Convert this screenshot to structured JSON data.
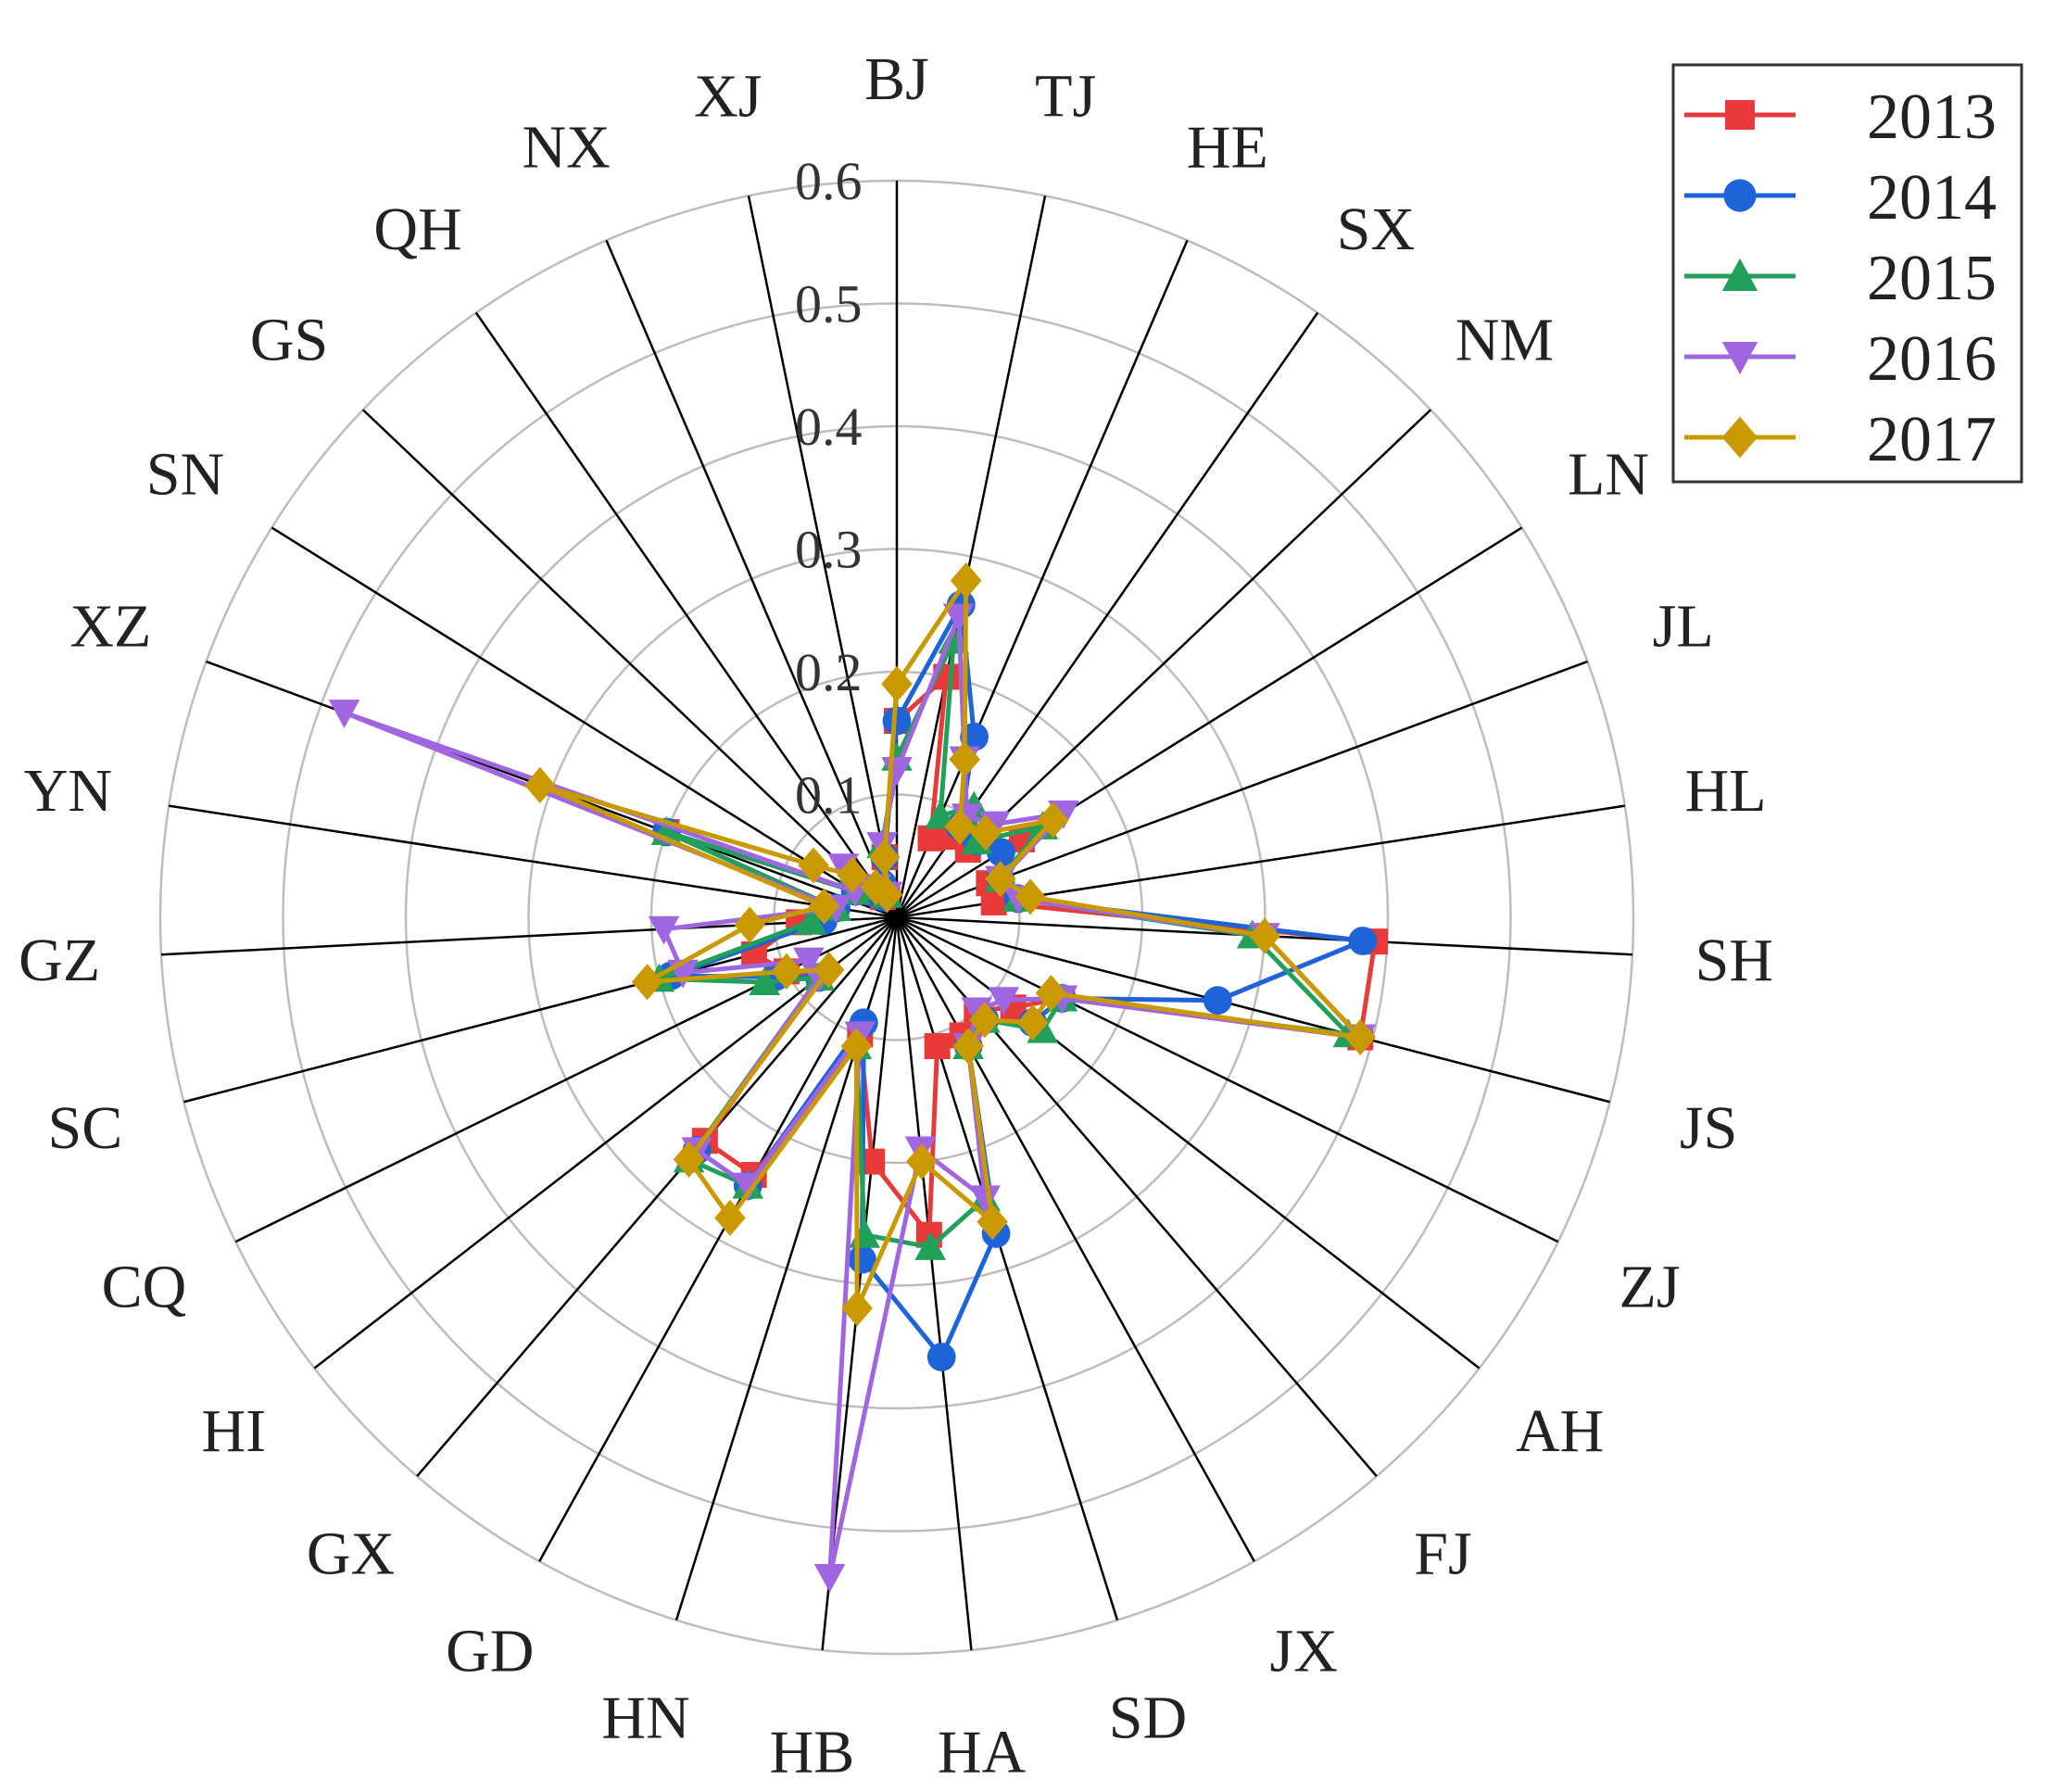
{
  "chart_data": {
    "type": "radar",
    "categories": [
      "BJ",
      "TJ",
      "HE",
      "SX",
      "NM",
      "LN",
      "JL",
      "HL",
      "SH",
      "JS",
      "ZJ",
      "AH",
      "FJ",
      "JX",
      "SD",
      "HA",
      "HB",
      "HN",
      "GD",
      "GX",
      "HI",
      "CQ",
      "SC",
      "GZ",
      "YN",
      "XZ",
      "SN",
      "GS",
      "QH",
      "NX",
      "XJ"
    ],
    "radial_ticks": [
      "0.1",
      "0.2",
      "0.3",
      "0.4",
      "0.5",
      "0.6"
    ],
    "rlim": [
      0,
      0.6
    ],
    "grid": true,
    "legend_position": "top-right",
    "series": [
      {
        "name": "2013",
        "color": "#e8393b",
        "marker": "square",
        "values": [
          0.16,
          0.2,
          0.07,
          0.08,
          0.08,
          0.12,
          0.08,
          0.08,
          0.39,
          0.39,
          0.15,
          0.12,
          0.1,
          0.11,
          0.11,
          0.26,
          0.2,
          0.1,
          0.24,
          0.24,
          0.08,
          0.1,
          0.12,
          0.08,
          0.05,
          0.2,
          0.04,
          0.03,
          0.02,
          0.02,
          0.05
        ]
      },
      {
        "name": "2014",
        "color": "#1e63d8",
        "marker": "circle",
        "values": [
          0.16,
          0.26,
          0.16,
          0.09,
          0.09,
          0.1,
          0.09,
          0.1,
          0.38,
          0.27,
          0.15,
          0.14,
          0.11,
          0.12,
          0.27,
          0.36,
          0.28,
          0.09,
          0.25,
          0.25,
          0.08,
          0.11,
          0.19,
          0.06,
          0.05,
          0.2,
          0.04,
          0.03,
          0.02,
          0.03,
          0.05
        ]
      },
      {
        "name": "2015",
        "color": "#22a05a",
        "marker": "triangle-up",
        "values": [
          0.13,
          0.23,
          0.09,
          0.11,
          0.09,
          0.14,
          0.09,
          0.1,
          0.29,
          0.38,
          0.15,
          0.15,
          0.11,
          0.12,
          0.24,
          0.27,
          0.26,
          0.11,
          0.25,
          0.26,
          0.08,
          0.12,
          0.2,
          0.07,
          0.05,
          0.2,
          0.04,
          0.05,
          0.03,
          0.02,
          0.06
        ]
      },
      {
        "name": "2016",
        "color": "#a066e0",
        "marker": "triangle-down",
        "values": [
          0.12,
          0.25,
          0.14,
          0.1,
          0.11,
          0.16,
          0.09,
          0.1,
          0.3,
          0.39,
          0.15,
          0.11,
          0.1,
          0.12,
          0.24,
          0.19,
          0.54,
          0.1,
          0.25,
          0.25,
          0.08,
          0.08,
          0.18,
          0.19,
          0.05,
          0.48,
          0.04,
          0.06,
          0.03,
          0.02,
          0.06
        ]
      },
      {
        "name": "2017",
        "color": "#c99a00",
        "marker": "diamond",
        "values": [
          0.19,
          0.28,
          0.14,
          0.09,
          0.1,
          0.15,
          0.09,
          0.11,
          0.3,
          0.39,
          0.14,
          0.14,
          0.11,
          0.12,
          0.26,
          0.2,
          0.32,
          0.11,
          0.28,
          0.26,
          0.07,
          0.1,
          0.21,
          0.12,
          0.06,
          0.31,
          0.08,
          0.05,
          0.03,
          0.02,
          0.05
        ]
      }
    ]
  }
}
